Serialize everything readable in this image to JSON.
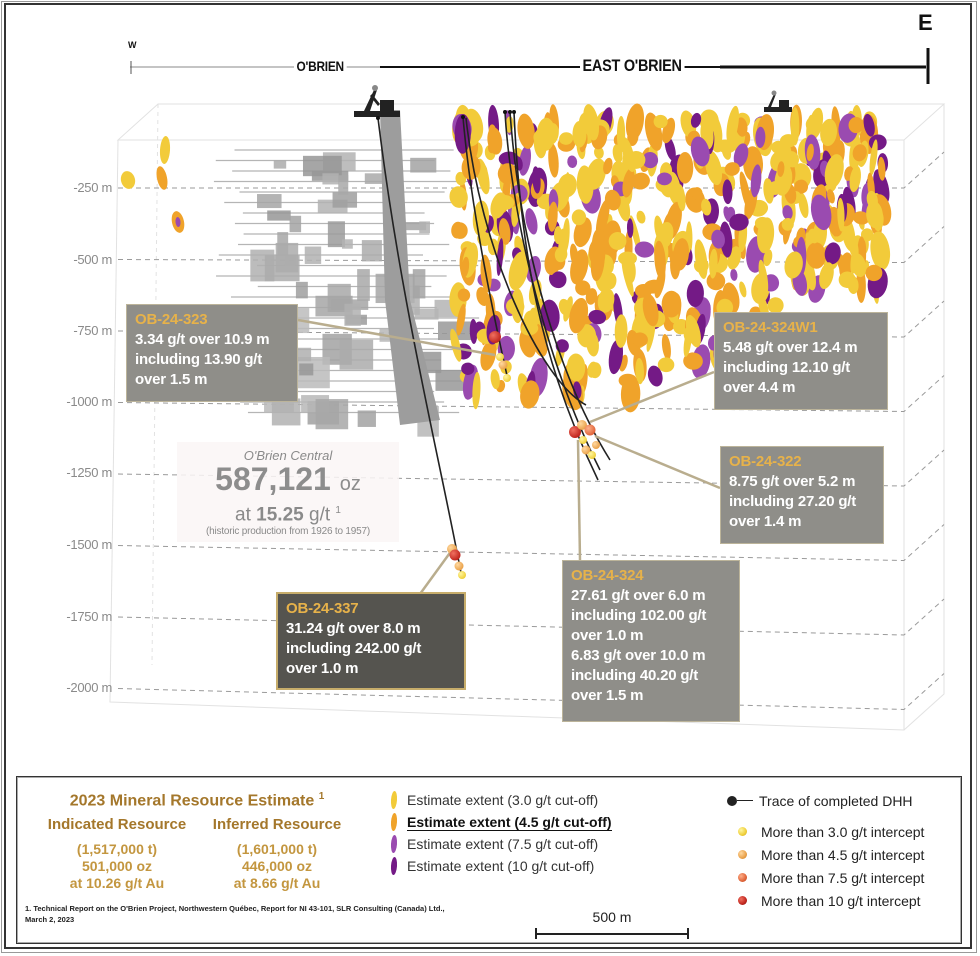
{
  "header": {
    "west": "W",
    "east": "E",
    "sections": [
      "O'BRIEN",
      "EAST O'BRIEN"
    ]
  },
  "depth_axis": {
    "unit": "m",
    "labels": [
      "-250 m",
      "-500 m",
      "-750 m",
      "-1000 m",
      "-1250 m",
      "-1500 m",
      "-1750 m",
      "-2000 m"
    ],
    "values": [
      -250,
      -500,
      -750,
      -1000,
      -1250,
      -1500,
      -1750,
      -2000
    ]
  },
  "obrien_central": {
    "title": "O'Brien Central",
    "ounces": "587,121",
    "ounces_unit": "oz",
    "grade_prefix": "at",
    "grade": "15.25",
    "grade_unit": "g/t",
    "footnote_marker": "1",
    "note": "(historic production from 1926 to 1957)"
  },
  "callouts": [
    {
      "hole": "OB-24-323",
      "lines": [
        "3.34 g/t over 10.9 m",
        "including 13.90 g/t",
        "over 1.5 m"
      ]
    },
    {
      "hole": "OB-24-324W1",
      "lines": [
        "5.48 g/t over 12.4 m",
        "including 12.10 g/t",
        "over 4.4 m"
      ]
    },
    {
      "hole": "OB-24-322",
      "lines": [
        "8.75 g/t over 5.2 m",
        "including 27.20 g/t",
        "over 1.4 m"
      ]
    },
    {
      "hole": "OB-24-324",
      "lines": [
        "27.61 g/t over 6.0 m",
        "including 102.00 g/t",
        "over 1.0 m",
        "6.83 g/t over 10.0 m",
        "including 40.20 g/t",
        "over 1.5 m"
      ]
    },
    {
      "hole": "OB-24-337",
      "lines": [
        "31.24 g/t over 8.0 m",
        "including 242.00 g/t",
        "over 1.0 m"
      ]
    }
  ],
  "legend": {
    "mre": {
      "title": "2023 Mineral Resource Estimate",
      "footnote_marker": "1",
      "indicated": {
        "head": "Indicated Resource",
        "tonnes": "(1,517,000 t)",
        "ounces": "501,000 oz",
        "grade": "at 10.26 g/t Au"
      },
      "inferred": {
        "head": "Inferred Resource",
        "tonnes": "(1,601,000 t)",
        "ounces": "446,000 oz",
        "grade": "at 8.66 g/t Au"
      }
    },
    "footnote": "1. Technical Report on the O'Brien Project, Northwestern Québec, Report for NI 43-101, SLR Consulting (Canada) Ltd., March 2, 2023",
    "extents": [
      {
        "label": "Estimate extent (3.0  g/t cut-off)",
        "color": "#f2cb3a"
      },
      {
        "label": "Estimate extent (4.5  g/t cut-off)",
        "color": "#f0a32a",
        "emphasis": true
      },
      {
        "label": "Estimate extent (7.5 g/t cut-off)",
        "color": "#9a4bb0"
      },
      {
        "label": "Estimate extent (10 g/t cut-off)",
        "color": "#741a86"
      }
    ],
    "dhh_trace": "Trace of completed DHH",
    "intercepts": [
      {
        "label": "More than 3.0 g/t intercept",
        "color": "#efcf3a"
      },
      {
        "label": "More than 4.5 g/t intercept",
        "color": "#eaa24a"
      },
      {
        "label": "More than 7.5 g/t intercept",
        "color": "#e0653a"
      },
      {
        "label": "More than 10 g/t intercept",
        "color": "#c0261e"
      }
    ],
    "scale_bar": "500 m"
  },
  "colors": {
    "cutoff_3_0": "#f2cb3a",
    "cutoff_4_5": "#f0a32a",
    "cutoff_7_5": "#9a4bb0",
    "cutoff_10": "#741a86",
    "historic_workings": "#a9a9a9",
    "callout_grey": "#8f8e89",
    "callout_dark": "#55544f",
    "hole_name": "#e7b24a",
    "mre_text": "#a4772b"
  }
}
